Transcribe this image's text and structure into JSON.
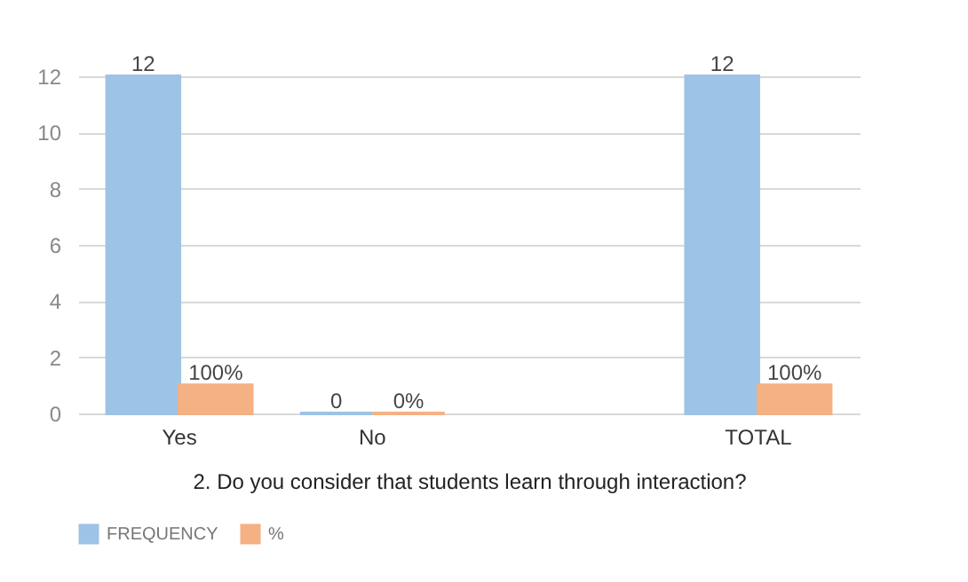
{
  "chart_data": {
    "type": "bar",
    "title": "2.   Do you consider that students learn through interaction?",
    "categories": [
      "Yes",
      "No",
      null,
      "TOTAL"
    ],
    "series": [
      {
        "name": "FREQUENCY",
        "color": "#9dc3e6",
        "values": [
          12,
          0,
          null,
          12
        ],
        "value_labels": [
          "12",
          "0",
          null,
          "12"
        ]
      },
      {
        "name": "%",
        "color": "#f4b183",
        "values": [
          1,
          0,
          null,
          1
        ],
        "value_labels": [
          "100%",
          "0%",
          null,
          "100%"
        ]
      }
    ],
    "ylim": [
      0,
      12
    ],
    "yticks": [
      0,
      2,
      4,
      6,
      8,
      10,
      12
    ],
    "grid": "y",
    "legend": "bottom"
  }
}
